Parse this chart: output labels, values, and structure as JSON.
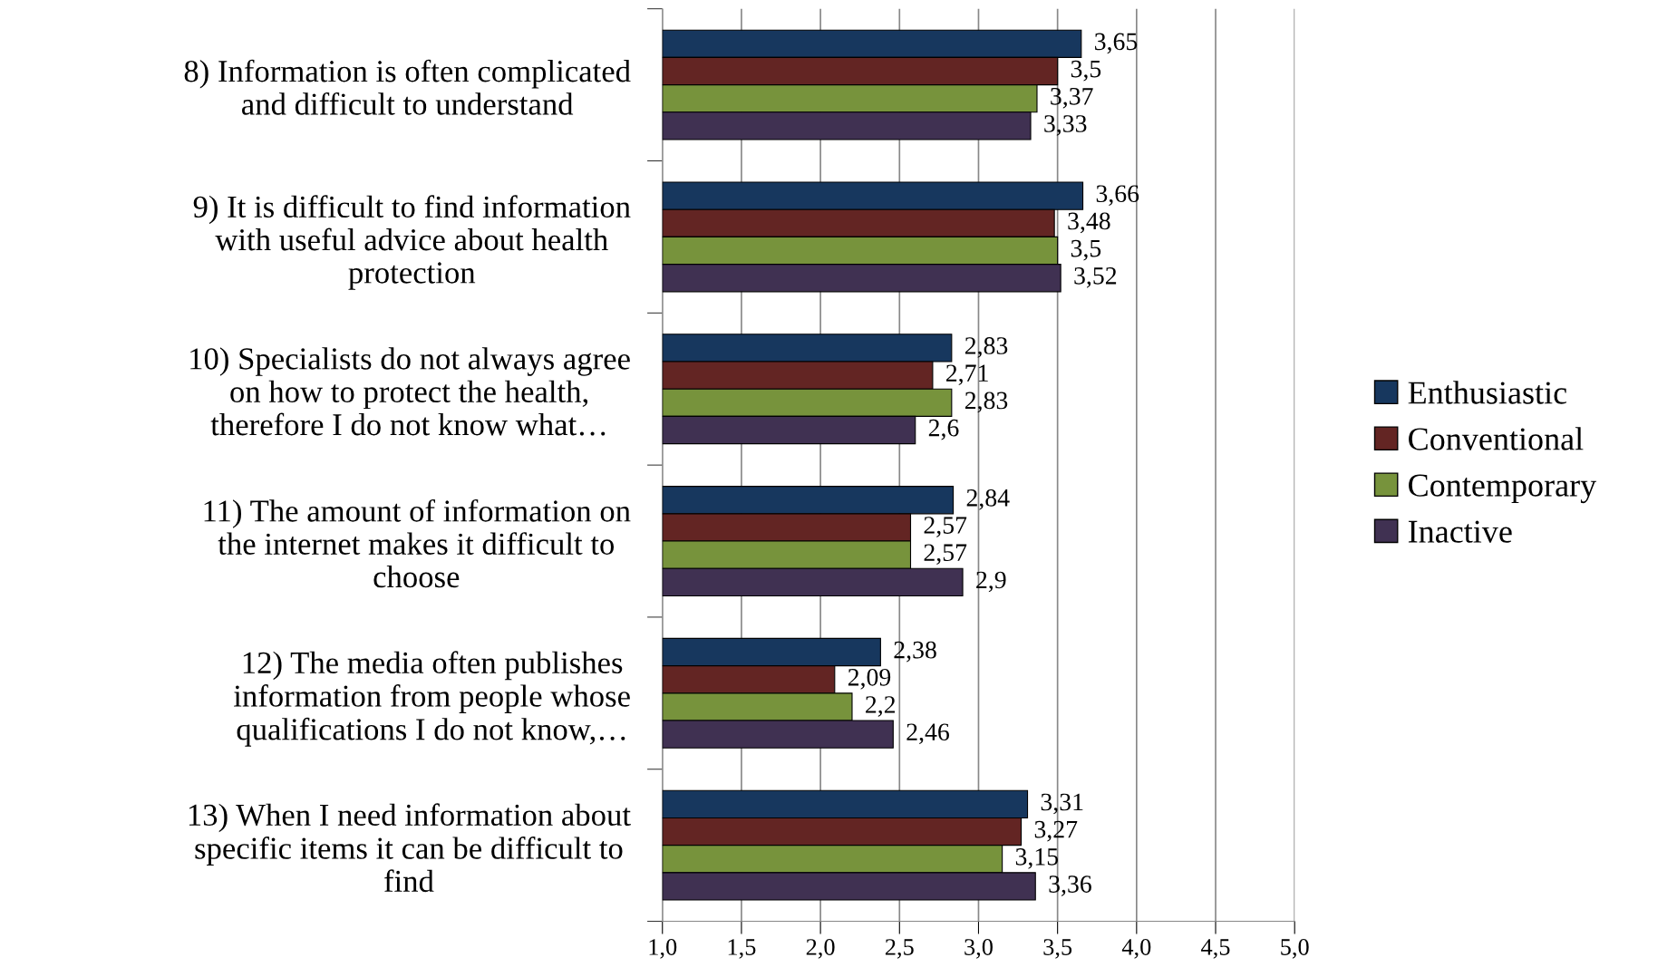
{
  "chart_data": {
    "type": "bar",
    "orientation": "horizontal",
    "categories": [
      "8) Information is often complicated\nand difficult to understand",
      "9) It is difficult to find information\nwith useful advice about health\nprotection",
      "10) Specialists do not always agree\non how to protect the health,\ntherefore I do not know what…",
      "11) The amount of information on\nthe internet makes it difficult to\nchoose",
      "12) The media often publishes\ninformation from people whose\nqualifications I do not know,…",
      "13) When I need information about\nspecific items it can be difficult to\nfind"
    ],
    "series": [
      {
        "name": "Enthusiastic",
        "color": "#17375e",
        "values": [
          3.65,
          3.66,
          2.83,
          2.84,
          2.38,
          3.31
        ],
        "value_labels": [
          "3,65",
          "3,66",
          "2,83",
          "2,84",
          "2,38",
          "3,31"
        ]
      },
      {
        "name": "Conventional",
        "color": "#632523",
        "values": [
          3.5,
          3.48,
          2.71,
          2.57,
          2.09,
          3.27
        ],
        "value_labels": [
          "3,5",
          "3,48",
          "2,71",
          "2,57",
          "2,09",
          "3,27"
        ]
      },
      {
        "name": "Contemporary",
        "color": "#77933c",
        "values": [
          3.37,
          3.5,
          2.83,
          2.57,
          2.2,
          3.15
        ],
        "value_labels": [
          "3,37",
          "3,5",
          "2,83",
          "2,57",
          "2,2",
          "3,15"
        ]
      },
      {
        "name": "Inactive",
        "color": "#403152",
        "values": [
          3.33,
          3.52,
          2.6,
          2.9,
          2.46,
          3.36
        ],
        "value_labels": [
          "3,33",
          "3,52",
          "2,6",
          "2,9",
          "2,46",
          "3,36"
        ]
      }
    ],
    "xlim": [
      1.0,
      5.0
    ],
    "xticks": [
      {
        "value": 1.0,
        "label": "1,0"
      },
      {
        "value": 1.5,
        "label": "1,5"
      },
      {
        "value": 2.0,
        "label": "2,0"
      },
      {
        "value": 2.5,
        "label": "2,5"
      },
      {
        "value": 3.0,
        "label": "3,0"
      },
      {
        "value": 3.5,
        "label": "3,5"
      },
      {
        "value": 4.0,
        "label": "4,0"
      },
      {
        "value": 4.5,
        "label": "4,5"
      },
      {
        "value": 5.0,
        "label": "5,0"
      }
    ],
    "grid": "x",
    "legend": "right"
  }
}
